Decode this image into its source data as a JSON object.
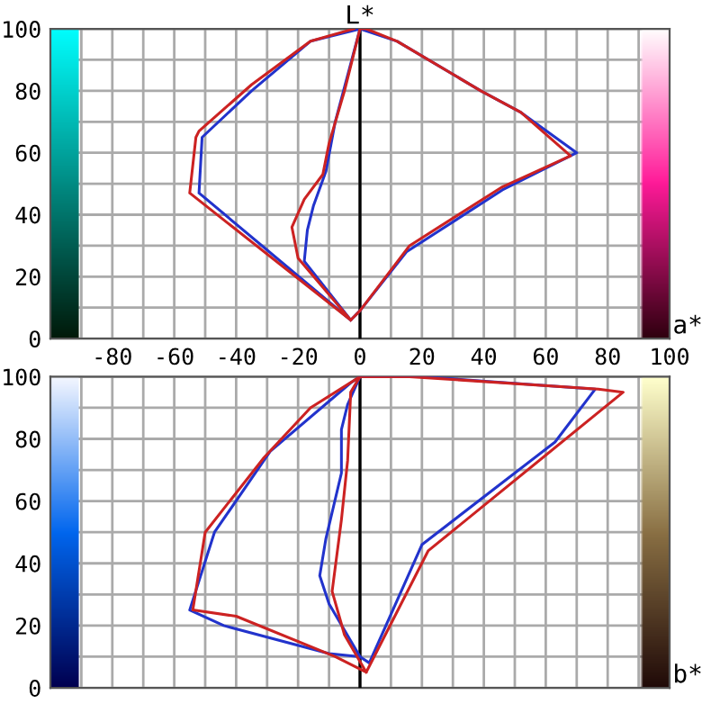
{
  "chart_data": [
    {
      "type": "line",
      "title": "L*",
      "xlabel": "a*",
      "xlim": [
        -100,
        100
      ],
      "ylim": [
        0,
        100
      ],
      "xticks": [
        {
          "value": -90,
          "label": null
        },
        -80,
        {
          "value": -70,
          "label": null
        },
        -60,
        {
          "value": -50,
          "label": null
        },
        -40,
        {
          "value": -30,
          "label": null
        },
        -20,
        {
          "value": -10,
          "label": null
        },
        0,
        {
          "value": 10,
          "label": null
        },
        20,
        {
          "value": 30,
          "label": null
        },
        40,
        {
          "value": 50,
          "label": null
        },
        60,
        {
          "value": 70,
          "label": null
        },
        80,
        {
          "value": 90,
          "label": null
        },
        100
      ],
      "yticks": [
        0,
        {
          "value": 10,
          "label": null
        },
        20,
        {
          "value": 30,
          "label": null
        },
        40,
        {
          "value": 50,
          "label": null
        },
        60,
        {
          "value": 70,
          "label": null
        },
        80,
        {
          "value": 90,
          "label": null
        },
        100
      ],
      "grid": true,
      "legend": false,
      "marker": "none",
      "line_style": "solid",
      "ref_lines": [
        {
          "axis": "x",
          "value": 0,
          "label": null,
          "color": "#000000"
        }
      ],
      "series": [
        {
          "color": "#2233cc",
          "x": [
            -3,
            -18,
            -17,
            -15,
            -11,
            -8,
            0,
            12,
            39,
            52,
            70,
            46,
            15,
            0,
            -3,
            -52,
            -51,
            -35,
            -16,
            0
          ],
          "values": [
            6,
            25,
            35,
            43,
            54,
            70,
            100,
            96,
            80,
            73,
            60,
            48,
            28,
            9,
            6,
            47,
            65,
            80,
            96,
            100
          ]
        },
        {
          "color": "#cc2222",
          "x": [
            -3,
            -20,
            -22,
            -18,
            -12,
            -10,
            -5,
            0,
            2,
            12,
            39,
            52,
            68,
            46,
            16,
            0,
            -3,
            -55,
            -53,
            -52,
            -35,
            -16,
            -2
          ],
          "values": [
            6,
            26,
            36,
            45,
            53,
            63,
            80,
            100,
            100,
            96,
            80,
            73,
            59,
            49,
            30,
            9,
            6,
            47,
            65,
            67,
            82,
            96,
            100
          ]
        }
      ]
    },
    {
      "type": "line",
      "xlabel": "b*",
      "xlim": [
        -100,
        100
      ],
      "ylim": [
        0,
        100
      ],
      "tick_labels": "y",
      "xticks": [
        {
          "value": -90,
          "label": null
        },
        {
          "value": -80,
          "label": null
        },
        {
          "value": -70,
          "label": null
        },
        {
          "value": -60,
          "label": null
        },
        {
          "value": -50,
          "label": null
        },
        {
          "value": -40,
          "label": null
        },
        {
          "value": -30,
          "label": null
        },
        {
          "value": -20,
          "label": null
        },
        {
          "value": -10,
          "label": null
        },
        {
          "value": 0,
          "label": null
        },
        {
          "value": 10,
          "label": null
        },
        {
          "value": 20,
          "label": null
        },
        {
          "value": 30,
          "label": null
        },
        {
          "value": 40,
          "label": null
        },
        {
          "value": 50,
          "label": null
        },
        {
          "value": 60,
          "label": null
        },
        {
          "value": 70,
          "label": null
        },
        {
          "value": 80,
          "label": null
        },
        {
          "value": 90,
          "label": null
        }
      ],
      "yticks": [
        0,
        {
          "value": 10,
          "label": null
        },
        20,
        {
          "value": 30,
          "label": null
        },
        40,
        {
          "value": 50,
          "label": null
        },
        60,
        {
          "value": 70,
          "label": null
        },
        80,
        {
          "value": 90,
          "label": null
        },
        100
      ],
      "grid": true,
      "legend": false,
      "marker": "none",
      "line_style": "solid",
      "ref_lines": [
        {
          "axis": "x",
          "value": 0,
          "label": null,
          "color": "#000000"
        }
      ],
      "series": [
        {
          "color": "#2233cc",
          "x": [
            0,
            -10,
            -13,
            -11,
            -6,
            -6,
            -4,
            0,
            20,
            76,
            63,
            20,
            3,
            0,
            -10,
            -44,
            -55,
            -47,
            -29,
            -3,
            0
          ],
          "values": [
            10,
            27,
            36,
            48,
            69,
            83,
            91,
            100,
            100,
            96,
            79,
            46,
            8,
            10,
            11,
            20,
            25,
            50,
            76,
            98,
            100
          ]
        },
        {
          "color": "#cc2222",
          "x": [
            2,
            -5,
            -9,
            -6,
            -4,
            -3,
            0,
            -16,
            -31,
            -50,
            -54,
            -40,
            -8,
            2,
            22,
            85,
            77,
            16,
            0
          ],
          "values": [
            5,
            17,
            31,
            54,
            73,
            95,
            100,
            90,
            74,
            50,
            25,
            23,
            10,
            5,
            44,
            95,
            96,
            100,
            100
          ]
        }
      ]
    }
  ]
}
